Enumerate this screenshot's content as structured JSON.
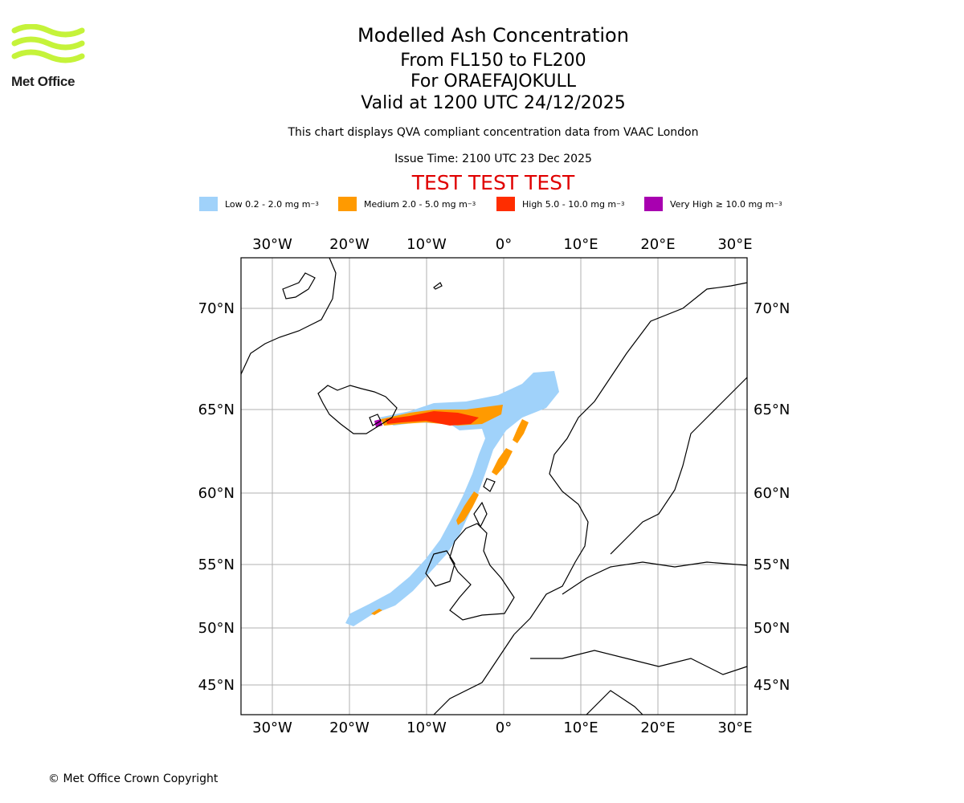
{
  "logo": {
    "text": "Met Office",
    "color": "#c5f33a"
  },
  "header": {
    "title": "Modelled Ash Concentration",
    "level_range": "From FL150 to FL200",
    "volcano": "For ORAEFAJOKULL",
    "valid_time": "Valid at 1200 UTC 24/12/2025",
    "note": "This chart displays QVA compliant concentration data from VAAC London",
    "issue_time": "Issue Time: 2100 UTC 23 Dec 2025",
    "test_banner": "TEST TEST TEST"
  },
  "legend": [
    {
      "label": "Low 0.2 - 2.0 mg m",
      "color": "#a0d2fa"
    },
    {
      "label": "Medium 2.0 - 5.0 mg m",
      "color": "#ff9a00"
    },
    {
      "label": "High 5.0 - 10.0 mg m",
      "color": "#ff2d00"
    },
    {
      "label": "Very High ≥ 10.0 mg m",
      "color": "#a800b0"
    }
  ],
  "legend_unit_exponent": "−3",
  "map": {
    "lon_labels": [
      "30°W",
      "20°W",
      "10°W",
      "0°",
      "10°E",
      "20°E",
      "30°E"
    ],
    "lat_labels": [
      "70°N",
      "65°N",
      "60°N",
      "55°N",
      "50°N",
      "45°N"
    ],
    "lon_range": [
      -34,
      32
    ],
    "lat_range": [
      43,
      72.5
    ],
    "gridlines": true
  },
  "footer": {
    "copyright": "© Met Office Crown Copyright"
  }
}
